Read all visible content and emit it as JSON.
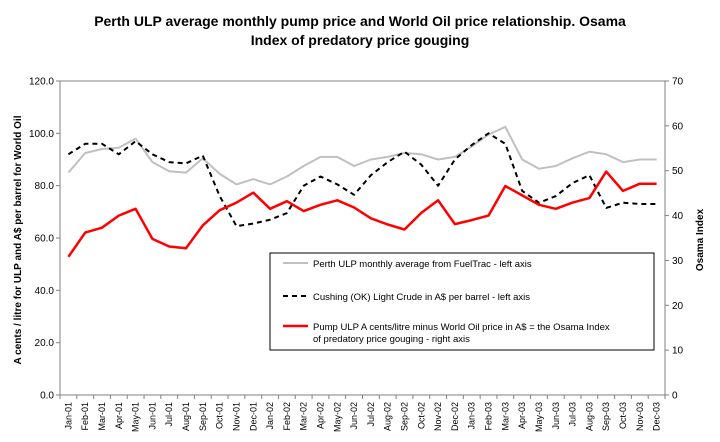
{
  "chart_data": {
    "type": "line",
    "title_lines": [
      "Perth ULP average monthly pump price and World Oil price relationship.   Osama",
      "Index of predatory price gouging"
    ],
    "ylabel_left": "A cents / litre for ULP and A$ per barrel for World Oil",
    "ylabel_right": "Osama Index",
    "ylim_left": [
      0,
      120
    ],
    "ylim_right": [
      0,
      70
    ],
    "yticks_left": [
      "0.0",
      "20.0",
      "40.0",
      "60.0",
      "80.0",
      "100.0",
      "120.0"
    ],
    "yticks_right": [
      "0",
      "10",
      "20",
      "30",
      "40",
      "50",
      "60",
      "70"
    ],
    "categories": [
      "Jan-01",
      "Feb-01",
      "Mar-01",
      "Apr-01",
      "May-01",
      "Jun-01",
      "Jul-01",
      "Aug-01",
      "Sep-01",
      "Oct-01",
      "Nov-01",
      "Dec-01",
      "Jan-02",
      "Feb-02",
      "Mar-02",
      "Apr-02",
      "May-02",
      "Jun-02",
      "Jul-02",
      "Aug-02",
      "Sep-02",
      "Oct-02",
      "Nov-02",
      "Dec-02",
      "Jan-03",
      "Feb-03",
      "Mar-03",
      "Apr-03",
      "May-03",
      "Jun-03",
      "Jul-03",
      "Aug-03",
      "Sep-03",
      "Oct-03",
      "Nov-03",
      "Dec-03"
    ],
    "grid": false,
    "legend_placement": "center-right",
    "series": [
      {
        "name": "Perth ULP monthly average from FuelTrac - left axis",
        "axis": "left",
        "color": "#c0c0c0",
        "style": "solid",
        "values": [
          85.0,
          92.5,
          94.0,
          94.5,
          98.0,
          89.0,
          85.5,
          85.0,
          90.5,
          84.5,
          80.5,
          82.5,
          80.5,
          83.5,
          87.5,
          91.0,
          91.0,
          87.5,
          90.0,
          91.0,
          92.5,
          92.0,
          90.0,
          91.0,
          95.0,
          99.5,
          102.5,
          90.0,
          86.5,
          87.5,
          90.5,
          93.0,
          92.0,
          89.0,
          90.0,
          90.0
        ]
      },
      {
        "name": "Cushing (OK) Light Crude in A$ per barrel  - left axis",
        "axis": "left",
        "color": "#000000",
        "style": "dashed",
        "values": [
          92.0,
          96.0,
          96.0,
          92.0,
          97.0,
          92.0,
          89.0,
          88.5,
          91.5,
          76.0,
          64.5,
          65.5,
          67.0,
          69.5,
          80.0,
          83.5,
          80.5,
          76.5,
          84.0,
          89.0,
          93.0,
          88.0,
          80.0,
          90.0,
          95.5,
          100.0,
          96.0,
          78.0,
          73.5,
          76.0,
          81.0,
          84.0,
          71.5,
          73.5,
          73.0,
          73.0
        ]
      },
      {
        "name": "Pump ULP A cents/litre minus World  Oil price in A$ = the Osama Index of predatory price gouging - right axis",
        "axis": "right",
        "color": "#ff0000",
        "style": "solid",
        "values": [
          30.8,
          36.2,
          37.3,
          40.0,
          41.5,
          34.8,
          33.1,
          32.7,
          37.8,
          41.2,
          42.9,
          45.1,
          41.5,
          43.2,
          41.0,
          42.4,
          43.4,
          41.8,
          39.4,
          38.0,
          36.9,
          40.6,
          43.4,
          38.1,
          39.0,
          40.0,
          46.6,
          44.5,
          42.4,
          41.5,
          42.9,
          43.9,
          49.8,
          45.5,
          47.1,
          47.1
        ]
      }
    ]
  }
}
